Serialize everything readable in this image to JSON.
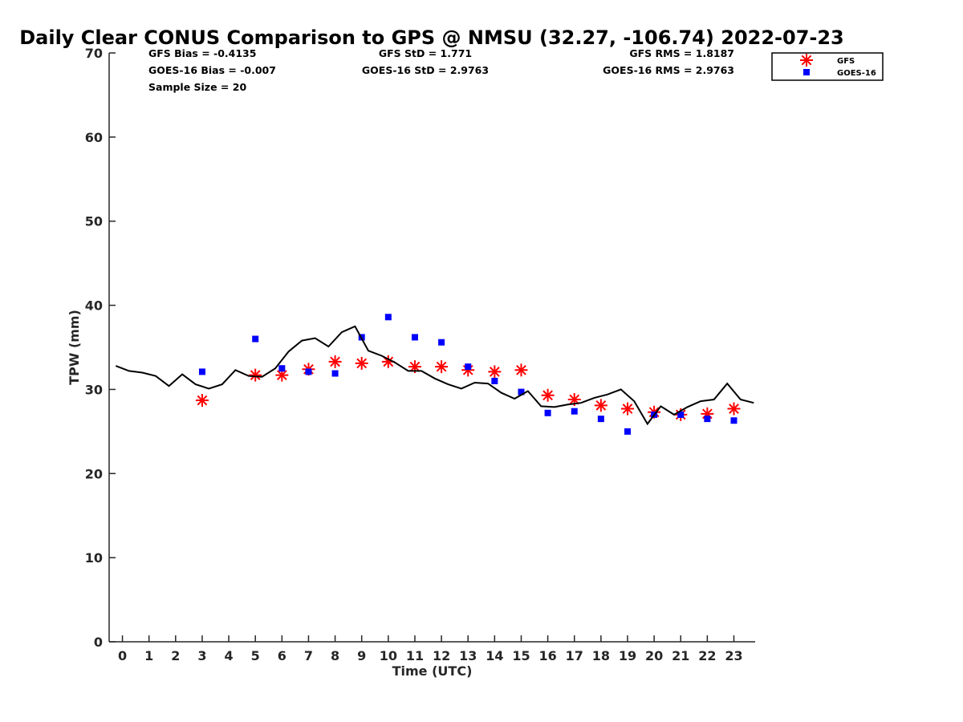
{
  "chart_data": {
    "type": "scatter",
    "title": "Daily Clear CONUS Comparison to GPS @ NMSU (32.27, -106.74) 2022-07-23",
    "xlabel": "Time (UTC)",
    "ylabel": "TPW (mm)",
    "xlim": [
      -0.5,
      23.8
    ],
    "ylim": [
      0,
      70
    ],
    "xticks": [
      0,
      1,
      2,
      3,
      4,
      5,
      6,
      7,
      8,
      9,
      10,
      11,
      12,
      13,
      14,
      15,
      16,
      17,
      18,
      19,
      20,
      21,
      22,
      23
    ],
    "yticks": [
      0,
      10,
      20,
      30,
      40,
      50,
      60,
      70
    ],
    "grid": false,
    "legend_position": "top-right",
    "stats": {
      "gfs_bias": "GFS Bias = -0.4135",
      "goes_bias": "GOES-16 Bias = -0.007",
      "sample_size": "Sample Size = 20",
      "gfs_std": "GFS StD = 1.771",
      "goes_std": "GOES-16 StD = 2.9763",
      "gfs_rms": "GFS RMS = 1.8187",
      "goes_rms": "GOES-16 RMS = 2.9763"
    },
    "series": [
      {
        "name": "GFS",
        "marker": "asterisk",
        "color": "#ff0000",
        "x": [
          3,
          5,
          6,
          7,
          8,
          9,
          10,
          11,
          12,
          13,
          14,
          15,
          16,
          17,
          18,
          19,
          20,
          21,
          22,
          23
        ],
        "y": [
          28.7,
          31.7,
          31.7,
          32.4,
          33.3,
          33.1,
          33.3,
          32.7,
          32.7,
          32.3,
          32.1,
          32.3,
          29.3,
          28.8,
          28.1,
          27.7,
          27.3,
          27.0,
          27.1,
          27.7
        ]
      },
      {
        "name": "GOES-16",
        "marker": "square",
        "color": "#0000ff",
        "x": [
          3,
          5,
          6,
          7,
          8,
          9,
          10,
          11,
          12,
          13,
          14,
          15,
          16,
          17,
          18,
          19,
          20,
          21,
          22,
          23
        ],
        "y": [
          32.1,
          36.0,
          32.5,
          32.1,
          31.9,
          36.2,
          38.6,
          36.2,
          35.6,
          32.7,
          31.0,
          29.7,
          27.2,
          27.4,
          26.5,
          25.0,
          27.0,
          27.0,
          26.5,
          26.3
        ]
      },
      {
        "name": "",
        "marker": "line",
        "color": "#000000",
        "x": [
          -0.25,
          0.25,
          0.75,
          1.25,
          1.75,
          2.25,
          2.75,
          3.25,
          3.75,
          4.25,
          4.75,
          5.25,
          5.75,
          6.25,
          6.75,
          7.25,
          7.75,
          8.25,
          8.75,
          9.25,
          9.75,
          10.25,
          10.75,
          11.25,
          11.75,
          12.25,
          12.75,
          13.25,
          13.75,
          14.25,
          14.75,
          15.25,
          15.75,
          16.25,
          16.75,
          17.25,
          17.75,
          18.25,
          18.75,
          19.25,
          19.75,
          20.25,
          20.75,
          21.25,
          21.75,
          22.25,
          22.75,
          23.25,
          23.75
        ],
        "y": [
          32.8,
          32.2,
          32.0,
          31.6,
          30.4,
          31.8,
          30.6,
          30.1,
          30.6,
          32.3,
          31.6,
          31.5,
          32.5,
          34.5,
          35.8,
          36.1,
          35.1,
          36.8,
          37.5,
          34.6,
          34.0,
          33.2,
          32.2,
          32.2,
          31.3,
          30.6,
          30.1,
          30.8,
          30.7,
          29.6,
          28.9,
          29.8,
          28.0,
          27.9,
          28.2,
          28.4,
          29.0,
          29.4,
          30.0,
          28.6,
          25.9,
          28.0,
          27.0,
          27.9,
          28.6,
          28.8,
          30.7,
          28.8,
          28.4
        ]
      }
    ]
  }
}
